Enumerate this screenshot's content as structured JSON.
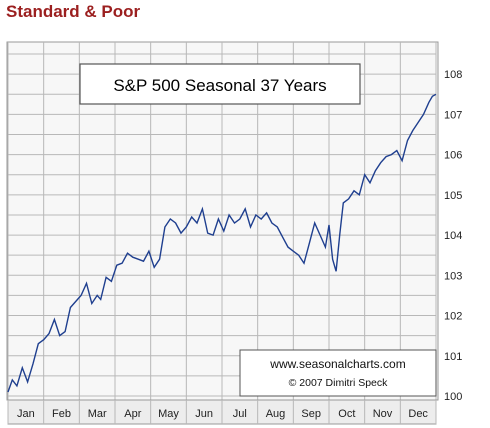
{
  "header": {
    "title": "Standard & Poor"
  },
  "chart_data": {
    "type": "line",
    "title": "S&P 500 Seasonal 37 Years",
    "credit": {
      "line1": "www.seasonalcharts.com",
      "line2": "© 2007  Dimitri Speck"
    },
    "xlabel": "",
    "ylabel": "",
    "categories": [
      "Jan",
      "Feb",
      "Mar",
      "Apr",
      "May",
      "Jun",
      "Jul",
      "Aug",
      "Sep",
      "Oct",
      "Nov",
      "Dec"
    ],
    "y_ticks": [
      100,
      101,
      102,
      103,
      104,
      105,
      106,
      107,
      108
    ],
    "ylim": [
      99.9,
      108.75
    ],
    "xlim": [
      0,
      12
    ],
    "grid": true,
    "series": [
      {
        "color": "#1f3f8f",
        "x": [
          0.0,
          0.12,
          0.25,
          0.4,
          0.55,
          0.7,
          0.85,
          1.0,
          1.15,
          1.3,
          1.45,
          1.6,
          1.75,
          1.9,
          2.05,
          2.2,
          2.35,
          2.5,
          2.6,
          2.75,
          2.9,
          3.05,
          3.2,
          3.35,
          3.5,
          3.65,
          3.8,
          3.95,
          4.1,
          4.25,
          4.4,
          4.55,
          4.7,
          4.85,
          5.0,
          5.15,
          5.3,
          5.45,
          5.6,
          5.75,
          5.9,
          6.05,
          6.2,
          6.35,
          6.5,
          6.65,
          6.8,
          6.95,
          7.1,
          7.25,
          7.4,
          7.55,
          7.7,
          7.85,
          8.0,
          8.15,
          8.3,
          8.45,
          8.6,
          8.75,
          8.9,
          9.0,
          9.1,
          9.2,
          9.3,
          9.4,
          9.55,
          9.7,
          9.85,
          10.0,
          10.15,
          10.3,
          10.45,
          10.6,
          10.75,
          10.9,
          11.05,
          11.2,
          11.35,
          11.5,
          11.65,
          11.8,
          11.9,
          12.0
        ],
        "y": [
          100.1,
          100.4,
          100.25,
          100.7,
          100.35,
          100.8,
          101.3,
          101.4,
          101.55,
          101.9,
          101.5,
          101.6,
          102.2,
          102.35,
          102.5,
          102.8,
          102.3,
          102.5,
          102.4,
          102.95,
          102.85,
          103.25,
          103.3,
          103.55,
          103.45,
          103.4,
          103.35,
          103.6,
          103.2,
          103.4,
          104.2,
          104.4,
          104.3,
          104.05,
          104.2,
          104.45,
          104.3,
          104.65,
          104.05,
          104.0,
          104.4,
          104.1,
          104.5,
          104.3,
          104.4,
          104.65,
          104.2,
          104.5,
          104.4,
          104.55,
          104.3,
          104.2,
          103.95,
          103.7,
          103.6,
          103.5,
          103.3,
          103.8,
          104.3,
          104.0,
          103.7,
          104.25,
          103.4,
          103.1,
          104.0,
          104.8,
          104.9,
          105.1,
          105.0,
          105.5,
          105.3,
          105.6,
          105.8,
          105.95,
          106.0,
          106.1,
          105.85,
          106.35,
          106.6,
          106.8,
          107.0,
          107.3,
          107.45,
          107.5
        ]
      }
    ]
  }
}
